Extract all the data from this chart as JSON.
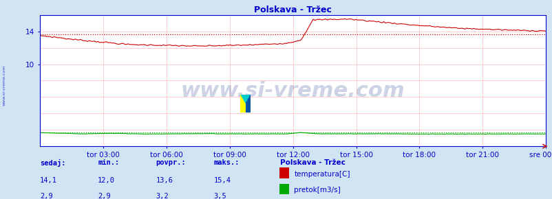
{
  "title": "Polskava - Tržec",
  "bg_color": "#d0e4f4",
  "plot_bg_color": "#ffffff",
  "grid_color": "#ffbbbb",
  "vgrid_color": "#ffbbbb",
  "x_labels": [
    "tor 03:00",
    "tor 06:00",
    "tor 09:00",
    "tor 12:00",
    "tor 15:00",
    "tor 18:00",
    "tor 21:00",
    "sre 00:00"
  ],
  "n_points": 288,
  "ylim": [
    0,
    16
  ],
  "yticks": [
    10,
    14
  ],
  "temp_color": "#cc0000",
  "flow_color": "#00aa00",
  "avg_line_color_temp": "#cc0000",
  "avg_line_color_flow": "#00aa00",
  "axis_color": "#0000cc",
  "watermark": "www.si-vreme.com",
  "watermark_color": "#1a3a8a",
  "watermark_alpha": 0.22,
  "watermark_fontsize": 22,
  "legend_title": "Polskava - Tržec",
  "legend_items": [
    {
      "label": "temperatura[C]",
      "color": "#cc0000"
    },
    {
      "label": "pretok[m3/s]",
      "color": "#00aa00"
    }
  ],
  "footer_cols": [
    "sedaj:",
    "min.:",
    "povpr.:",
    "maks.:"
  ],
  "footer_temp": [
    "14,1",
    "12,0",
    "13,6",
    "15,4"
  ],
  "footer_flow": [
    "2,9",
    "2,9",
    "3,2",
    "3,5"
  ],
  "temp_avg_value": 13.6,
  "flow_avg_value_display": 3.2,
  "flow_scale_max": 20.0,
  "ylabel_left": "www.si-vreme.com"
}
